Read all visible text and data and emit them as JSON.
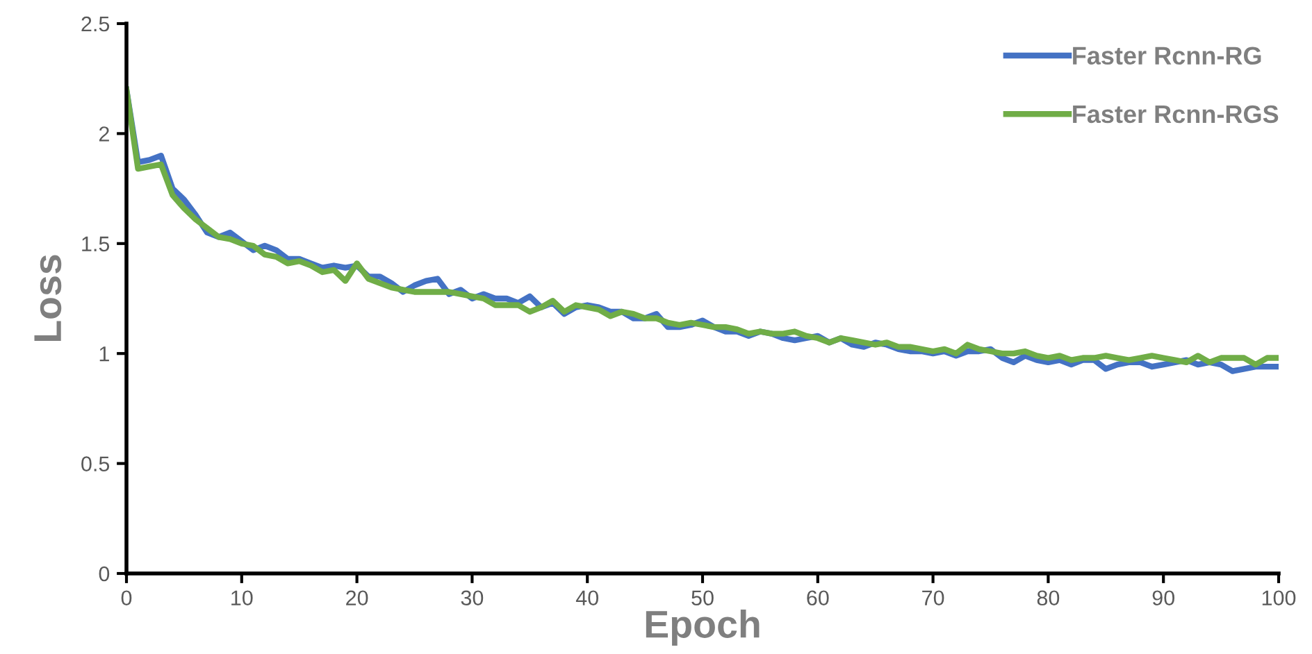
{
  "chart_data": {
    "type": "line",
    "xlabel": "Epoch",
    "ylabel": "Loss",
    "x": [
      0,
      1,
      2,
      3,
      4,
      5,
      6,
      7,
      8,
      9,
      10,
      11,
      12,
      13,
      14,
      15,
      16,
      17,
      18,
      19,
      20,
      21,
      22,
      23,
      24,
      25,
      26,
      27,
      28,
      29,
      30,
      31,
      32,
      33,
      34,
      35,
      36,
      37,
      38,
      39,
      40,
      41,
      42,
      43,
      44,
      45,
      46,
      47,
      48,
      49,
      50,
      51,
      52,
      53,
      54,
      55,
      56,
      57,
      58,
      59,
      60,
      61,
      62,
      63,
      64,
      65,
      66,
      67,
      68,
      69,
      70,
      71,
      72,
      73,
      74,
      75,
      76,
      77,
      78,
      79,
      80,
      81,
      82,
      83,
      84,
      85,
      86,
      87,
      88,
      89,
      90,
      91,
      92,
      93,
      94,
      95,
      96,
      97,
      98,
      99,
      100
    ],
    "series": [
      {
        "name": "Faster Rcnn-RG",
        "color": "#4472c4",
        "values": [
          2.2,
          1.87,
          1.88,
          1.9,
          1.75,
          1.7,
          1.63,
          1.55,
          1.53,
          1.55,
          1.51,
          1.47,
          1.49,
          1.47,
          1.43,
          1.43,
          1.41,
          1.39,
          1.4,
          1.39,
          1.4,
          1.35,
          1.35,
          1.32,
          1.28,
          1.31,
          1.33,
          1.34,
          1.27,
          1.29,
          1.25,
          1.27,
          1.25,
          1.25,
          1.23,
          1.26,
          1.21,
          1.23,
          1.18,
          1.21,
          1.22,
          1.21,
          1.19,
          1.19,
          1.16,
          1.16,
          1.18,
          1.12,
          1.12,
          1.13,
          1.15,
          1.12,
          1.1,
          1.1,
          1.08,
          1.1,
          1.09,
          1.07,
          1.06,
          1.07,
          1.08,
          1.05,
          1.07,
          1.04,
          1.03,
          1.05,
          1.04,
          1.02,
          1.01,
          1.01,
          1.0,
          1.01,
          0.99,
          1.01,
          1.01,
          1.02,
          0.98,
          0.96,
          0.99,
          0.97,
          0.96,
          0.97,
          0.95,
          0.97,
          0.97,
          0.93,
          0.95,
          0.96,
          0.96,
          0.94,
          0.95,
          0.96,
          0.97,
          0.95,
          0.96,
          0.95,
          0.92,
          0.93,
          0.94,
          0.94,
          0.94
        ]
      },
      {
        "name": "Faster Rcnn-RGS",
        "color": "#70ad47",
        "values": [
          2.2,
          1.84,
          1.85,
          1.86,
          1.72,
          1.66,
          1.61,
          1.57,
          1.53,
          1.52,
          1.5,
          1.49,
          1.45,
          1.44,
          1.41,
          1.42,
          1.4,
          1.37,
          1.38,
          1.33,
          1.41,
          1.34,
          1.32,
          1.3,
          1.29,
          1.28,
          1.28,
          1.28,
          1.28,
          1.27,
          1.26,
          1.25,
          1.22,
          1.22,
          1.22,
          1.19,
          1.21,
          1.24,
          1.19,
          1.22,
          1.21,
          1.2,
          1.17,
          1.19,
          1.18,
          1.16,
          1.16,
          1.14,
          1.13,
          1.14,
          1.13,
          1.12,
          1.12,
          1.11,
          1.09,
          1.1,
          1.09,
          1.09,
          1.1,
          1.08,
          1.07,
          1.05,
          1.07,
          1.06,
          1.05,
          1.04,
          1.05,
          1.03,
          1.03,
          1.02,
          1.01,
          1.02,
          1.0,
          1.04,
          1.02,
          1.01,
          1.0,
          1.0,
          1.01,
          0.99,
          0.98,
          0.99,
          0.97,
          0.98,
          0.98,
          0.99,
          0.98,
          0.97,
          0.98,
          0.99,
          0.98,
          0.97,
          0.96,
          0.99,
          0.96,
          0.98,
          0.98,
          0.98,
          0.95,
          0.98,
          0.98
        ]
      }
    ],
    "xlim": [
      0,
      100
    ],
    "xticks": [
      0,
      10,
      20,
      30,
      40,
      50,
      60,
      70,
      80,
      90,
      100
    ],
    "ylim": [
      0,
      2.5
    ],
    "yticks": [
      0,
      0.5,
      1,
      1.5,
      2,
      2.5
    ],
    "grid": false,
    "legend": "top right",
    "marker": "none",
    "line_style": "solid"
  }
}
